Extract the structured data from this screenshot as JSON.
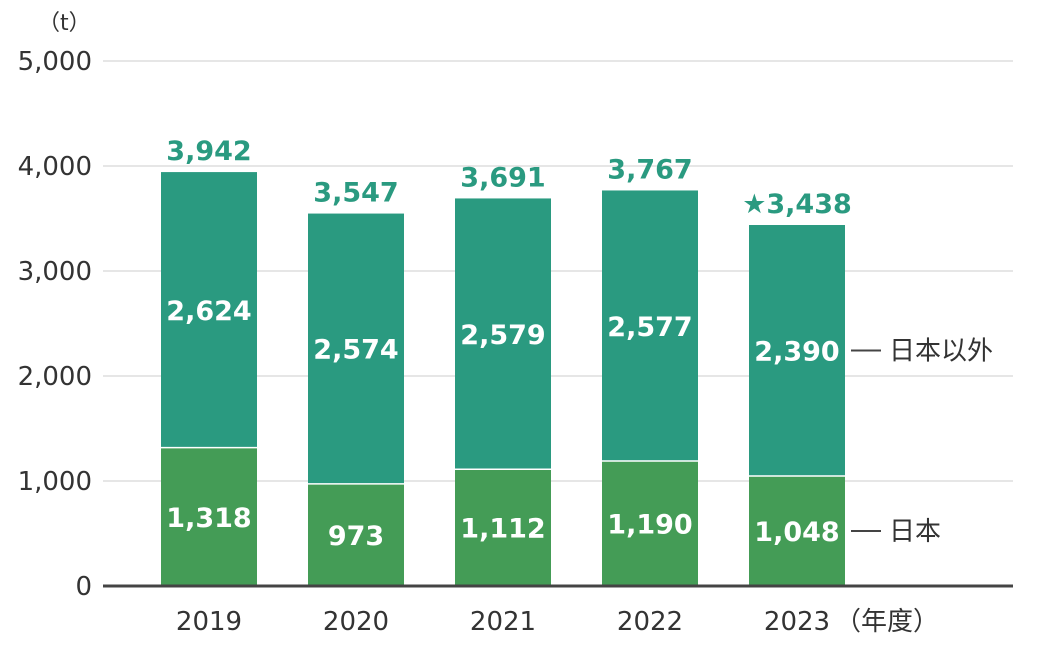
{
  "chart_data": {
    "type": "bar",
    "stacked": true,
    "unit": "（t）",
    "categories": [
      "2019",
      "2020",
      "2021",
      "2022",
      "2023"
    ],
    "x_suffix_last": "（年度）",
    "series": [
      {
        "name": "日本",
        "values": [
          1318,
          973,
          1112,
          1190,
          1048
        ],
        "labels": [
          "1,318",
          "973",
          "1,112",
          "1,190",
          "1,048"
        ],
        "color": "#449c56"
      },
      {
        "name": "日本以外",
        "values": [
          2624,
          2574,
          2579,
          2577,
          2390
        ],
        "labels": [
          "2,624",
          "2,574",
          "2,579",
          "2,577",
          "2,390"
        ],
        "color": "#2a9a80"
      }
    ],
    "totals": [
      3942,
      3547,
      3691,
      3767,
      3438
    ],
    "total_labels": [
      "3,942",
      "3,547",
      "3,691",
      "3,767",
      "★3,438"
    ],
    "ylim": [
      0,
      5000
    ],
    "yticks": [
      0,
      1000,
      2000,
      3000,
      4000,
      5000
    ],
    "ytick_labels": [
      "0",
      "1,000",
      "2,000",
      "3,000",
      "4,000",
      "5,000"
    ],
    "grid": true,
    "legend": "right",
    "colors": {
      "total_label": "#2a9a80",
      "grid": "#cccccc",
      "axis": "#444444",
      "text": "#333333"
    }
  }
}
